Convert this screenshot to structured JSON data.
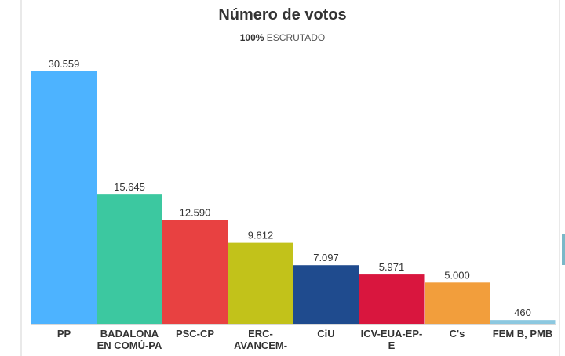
{
  "chart_data": {
    "type": "bar",
    "title": "Número de votos",
    "subtitle_bold": "100%",
    "subtitle_rest": " ESCRUTADO",
    "categories": [
      [
        "PP"
      ],
      [
        "BADALONA",
        "EN COMÚ-PA"
      ],
      [
        "PSC-CP"
      ],
      [
        "ERC-",
        "AVANCEM-"
      ],
      [
        "CiU"
      ],
      [
        "ICV-EUA-EP-",
        "E"
      ],
      [
        "C's"
      ],
      [
        "FEM B, PMB"
      ]
    ],
    "values": [
      30559,
      15645,
      12590,
      9812,
      7097,
      5971,
      5000,
      460
    ],
    "value_labels": [
      "30.559",
      "15.645",
      "12.590",
      "9.812",
      "7.097",
      "5.971",
      "5.000",
      "460"
    ],
    "colors": [
      "#4db3ff",
      "#3cc8a0",
      "#e84141",
      "#c2c21a",
      "#1f4b8e",
      "#d9163e",
      "#f29e3c",
      "#8cc8e0"
    ],
    "ylim": [
      0,
      30559
    ]
  }
}
